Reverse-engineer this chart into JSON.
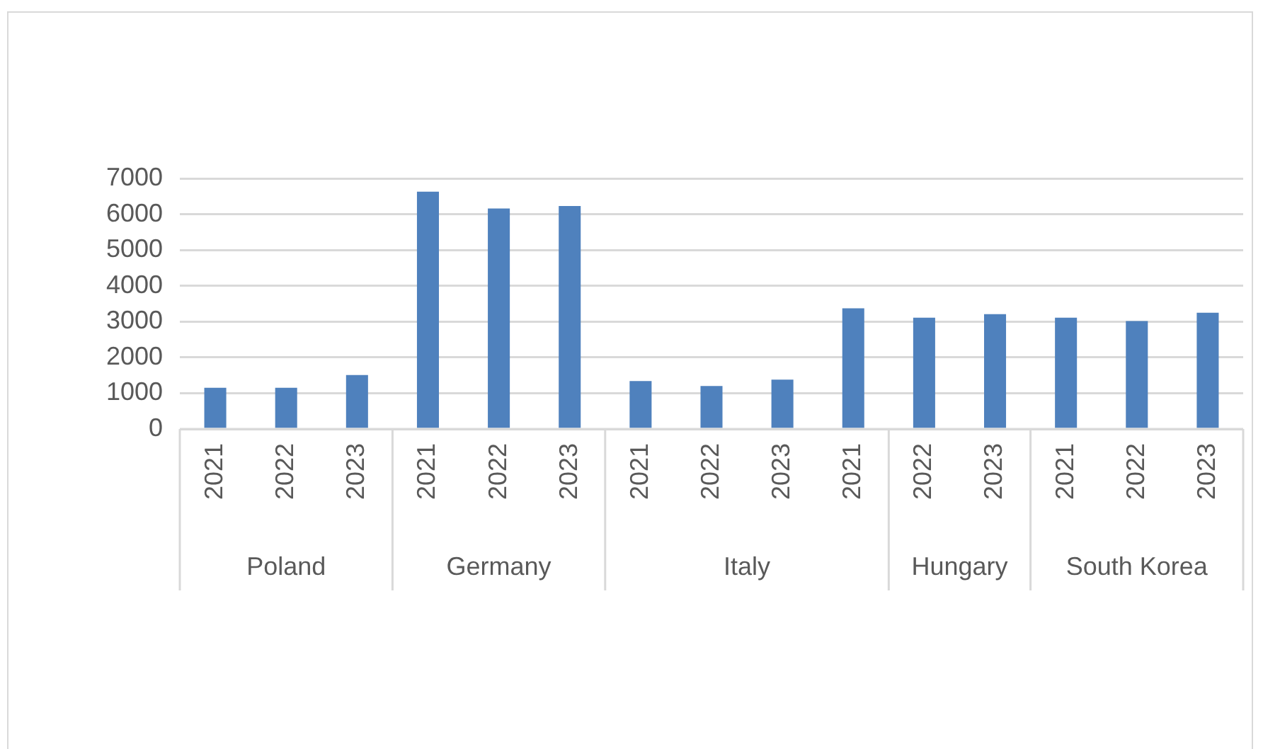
{
  "chart_data": {
    "type": "bar",
    "categories": [
      "2021",
      "2022",
      "2023",
      "2021",
      "2022",
      "2023",
      "2021",
      "2022",
      "2023",
      "2021",
      "2022",
      "2023",
      "2021",
      "2022",
      "2023"
    ],
    "values": [
      1150,
      1150,
      1510,
      6630,
      6160,
      6230,
      1340,
      1200,
      1380,
      3370,
      3110,
      3210,
      3110,
      3015,
      3250
    ],
    "color": "#4f81bd",
    "ylim": [
      0,
      7000
    ],
    "yticks": [
      0,
      1000,
      2000,
      3000,
      4000,
      5000,
      6000,
      7000
    ],
    "grid": "y",
    "legend": false,
    "annotations": [
      "Poland",
      "Germany",
      "Italy",
      "Hungary",
      "South Korea"
    ]
  }
}
